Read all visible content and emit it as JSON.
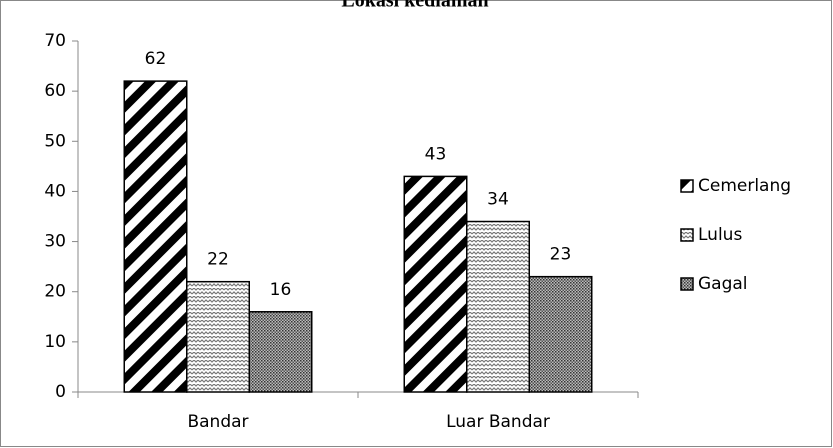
{
  "chart_data": {
    "type": "bar",
    "title": "Lokasi kediaman",
    "categories": [
      "Bandar",
      "Luar Bandar"
    ],
    "series": [
      {
        "name": "Cemerlang",
        "pattern": "stripes",
        "color": "#000000",
        "values": [
          62,
          43
        ]
      },
      {
        "name": "Lulus",
        "pattern": "zigzag",
        "color": "#000000",
        "values": [
          22,
          34
        ]
      },
      {
        "name": "Gagal",
        "pattern": "dense",
        "color": "#000000",
        "values": [
          16,
          23
        ]
      }
    ],
    "ylim": [
      0,
      70
    ],
    "yticks": [
      0,
      10,
      20,
      30,
      40,
      50,
      60,
      70
    ],
    "grid": false,
    "legend": "right"
  }
}
